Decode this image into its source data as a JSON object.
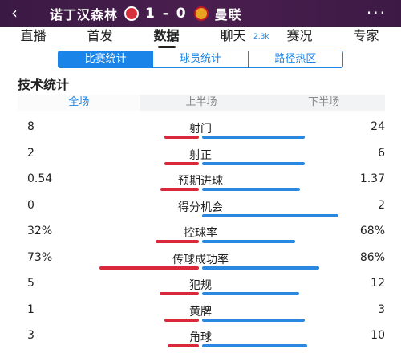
{
  "header": {
    "back_icon": "chevron-left-icon",
    "home_team": "诺丁汉森林",
    "score": "1 - 0",
    "away_team": "曼联",
    "more_icon": "more-icon"
  },
  "tabs": [
    {
      "label": "直播",
      "active": false
    },
    {
      "label": "首发",
      "active": false
    },
    {
      "label": "数据",
      "active": true
    },
    {
      "label": "聊天",
      "active": false,
      "sup": "2.3k"
    },
    {
      "label": "赛况",
      "active": false
    },
    {
      "label": "专家",
      "active": false
    }
  ],
  "subtabs": [
    {
      "label": "比赛统计",
      "active": true
    },
    {
      "label": "球员统计",
      "active": false
    },
    {
      "label": "路径热区",
      "active": false
    }
  ],
  "section_title": "技术统计",
  "periods": [
    {
      "label": "全场",
      "active": true
    },
    {
      "label": "上半场",
      "active": false
    },
    {
      "label": "下半场",
      "active": false
    }
  ],
  "stats": [
    {
      "label": "射门",
      "home": "8",
      "away": "24",
      "home_share": 0.25,
      "away_share": 0.75
    },
    {
      "label": "射正",
      "home": "2",
      "away": "6",
      "home_share": 0.25,
      "away_share": 0.75
    },
    {
      "label": "预期进球",
      "home": "0.54",
      "away": "1.37",
      "home_share": 0.28,
      "away_share": 0.72
    },
    {
      "label": "得分机会",
      "home": "0",
      "away": "2",
      "home_share": 0.0,
      "away_share": 1.0
    },
    {
      "label": "控球率",
      "home": "32%",
      "away": "68%",
      "home_share": 0.32,
      "away_share": 0.68
    },
    {
      "label": "传球成功率",
      "home": "73%",
      "away": "86%",
      "home_share": 0.73,
      "away_share": 0.86
    },
    {
      "label": "犯规",
      "home": "5",
      "away": "12",
      "home_share": 0.29,
      "away_share": 0.71
    },
    {
      "label": "黄牌",
      "home": "1",
      "away": "3",
      "home_share": 0.25,
      "away_share": 0.75
    },
    {
      "label": "角球",
      "home": "3",
      "away": "10",
      "home_share": 0.23,
      "away_share": 0.77
    }
  ],
  "colors": {
    "home_bar": "#d8283a",
    "away_bar": "#2a88e0",
    "accent": "#1a84e8",
    "header_bg": "#3f1c48"
  }
}
